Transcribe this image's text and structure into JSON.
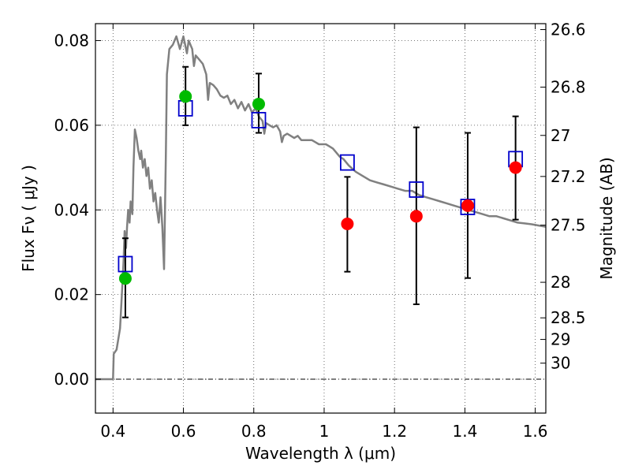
{
  "chart_data": {
    "type": "scatter",
    "xlabel": "Wavelength  λ (μm)",
    "ylabel": "Flux  Fν  ( μJy )",
    "y2label": "Magnitude (AB)",
    "xlim": [
      0.35,
      1.63
    ],
    "ylim": [
      -0.008,
      0.084
    ],
    "grid": true,
    "x_ticks": [
      0.4,
      0.6,
      0.8,
      1.0,
      1.2,
      1.4,
      1.6
    ],
    "x_tick_labels": [
      "0.4",
      "0.6",
      "0.8",
      "1",
      "1.2",
      "1.4",
      "1.6"
    ],
    "y_ticks": [
      0.0,
      0.02,
      0.04,
      0.06,
      0.08
    ],
    "y_tick_labels": [
      "0.00",
      "0.02",
      "0.04",
      "0.06",
      "0.08"
    ],
    "y2_ticks": [
      {
        "flux": 0.0826,
        "label": "26.6"
      },
      {
        "flux": 0.069,
        "label": "26.8"
      },
      {
        "flux": 0.0576,
        "label": "27"
      },
      {
        "flux": 0.0479,
        "label": "27.2"
      },
      {
        "flux": 0.0364,
        "label": "27.5"
      },
      {
        "flux": 0.0229,
        "label": "28"
      },
      {
        "flux": 0.0145,
        "label": "28.5"
      },
      {
        "flux": 0.0094,
        "label": "29"
      },
      {
        "flux": 0.0038,
        "label": "30"
      }
    ],
    "colors": {
      "model": "#808080",
      "detection": "#00bb00",
      "upper": "#ff0000",
      "box": "#0000cc",
      "errorbar": "#000000"
    },
    "model_spectrum": [
      [
        0.35,
        0.0
      ],
      [
        0.4,
        0.0
      ],
      [
        0.402,
        0.006
      ],
      [
        0.41,
        0.007
      ],
      [
        0.42,
        0.012
      ],
      [
        0.425,
        0.02
      ],
      [
        0.43,
        0.028
      ],
      [
        0.433,
        0.035
      ],
      [
        0.437,
        0.031
      ],
      [
        0.44,
        0.036
      ],
      [
        0.443,
        0.04
      ],
      [
        0.447,
        0.037
      ],
      [
        0.45,
        0.042
      ],
      [
        0.455,
        0.039
      ],
      [
        0.458,
        0.05
      ],
      [
        0.462,
        0.059
      ],
      [
        0.467,
        0.057
      ],
      [
        0.472,
        0.054
      ],
      [
        0.477,
        0.052
      ],
      [
        0.48,
        0.054
      ],
      [
        0.485,
        0.05
      ],
      [
        0.49,
        0.052
      ],
      [
        0.495,
        0.048
      ],
      [
        0.5,
        0.05
      ],
      [
        0.505,
        0.045
      ],
      [
        0.51,
        0.047
      ],
      [
        0.515,
        0.042
      ],
      [
        0.52,
        0.044
      ],
      [
        0.525,
        0.04
      ],
      [
        0.53,
        0.037
      ],
      [
        0.535,
        0.043
      ],
      [
        0.54,
        0.036
      ],
      [
        0.545,
        0.026
      ],
      [
        0.55,
        0.052
      ],
      [
        0.553,
        0.072
      ],
      [
        0.56,
        0.078
      ],
      [
        0.57,
        0.079
      ],
      [
        0.58,
        0.081
      ],
      [
        0.59,
        0.078
      ],
      [
        0.6,
        0.081
      ],
      [
        0.61,
        0.077
      ],
      [
        0.615,
        0.08
      ],
      [
        0.625,
        0.078
      ],
      [
        0.63,
        0.074
      ],
      [
        0.635,
        0.0765
      ],
      [
        0.645,
        0.0755
      ],
      [
        0.655,
        0.0745
      ],
      [
        0.665,
        0.072
      ],
      [
        0.67,
        0.066
      ],
      [
        0.675,
        0.07
      ],
      [
        0.685,
        0.0695
      ],
      [
        0.695,
        0.0685
      ],
      [
        0.705,
        0.067
      ],
      [
        0.715,
        0.0665
      ],
      [
        0.725,
        0.067
      ],
      [
        0.735,
        0.065
      ],
      [
        0.745,
        0.066
      ],
      [
        0.755,
        0.064
      ],
      [
        0.765,
        0.0655
      ],
      [
        0.775,
        0.0635
      ],
      [
        0.785,
        0.065
      ],
      [
        0.795,
        0.063
      ],
      [
        0.805,
        0.064
      ],
      [
        0.815,
        0.062
      ],
      [
        0.825,
        0.061
      ],
      [
        0.83,
        0.058
      ],
      [
        0.835,
        0.0605
      ],
      [
        0.845,
        0.06
      ],
      [
        0.855,
        0.0595
      ],
      [
        0.865,
        0.06
      ],
      [
        0.875,
        0.0585
      ],
      [
        0.88,
        0.056
      ],
      [
        0.885,
        0.0575
      ],
      [
        0.895,
        0.058
      ],
      [
        0.905,
        0.0575
      ],
      [
        0.915,
        0.057
      ],
      [
        0.925,
        0.0575
      ],
      [
        0.935,
        0.0565
      ],
      [
        0.945,
        0.0565
      ],
      [
        0.955,
        0.0565
      ],
      [
        0.965,
        0.0565
      ],
      [
        0.975,
        0.056
      ],
      [
        0.985,
        0.0555
      ],
      [
        0.995,
        0.0555
      ],
      [
        1.005,
        0.0555
      ],
      [
        1.015,
        0.055
      ],
      [
        1.025,
        0.0545
      ],
      [
        1.035,
        0.0535
      ],
      [
        1.045,
        0.0525
      ],
      [
        1.055,
        0.052
      ],
      [
        1.07,
        0.0505
      ],
      [
        1.09,
        0.049
      ],
      [
        1.11,
        0.048
      ],
      [
        1.13,
        0.047
      ],
      [
        1.15,
        0.0465
      ],
      [
        1.17,
        0.046
      ],
      [
        1.19,
        0.0455
      ],
      [
        1.21,
        0.045
      ],
      [
        1.23,
        0.0445
      ],
      [
        1.25,
        0.0445
      ],
      [
        1.27,
        0.0435
      ],
      [
        1.29,
        0.043
      ],
      [
        1.31,
        0.0425
      ],
      [
        1.33,
        0.042
      ],
      [
        1.35,
        0.0415
      ],
      [
        1.37,
        0.041
      ],
      [
        1.39,
        0.0405
      ],
      [
        1.41,
        0.04
      ],
      [
        1.43,
        0.0395
      ],
      [
        1.45,
        0.039
      ],
      [
        1.47,
        0.0385
      ],
      [
        1.49,
        0.0385
      ],
      [
        1.51,
        0.038
      ],
      [
        1.53,
        0.0375
      ],
      [
        1.55,
        0.037
      ],
      [
        1.57,
        0.0368
      ],
      [
        1.59,
        0.0366
      ],
      [
        1.61,
        0.0363
      ],
      [
        1.63,
        0.036
      ]
    ],
    "photometry": [
      {
        "x": 0.435,
        "y": 0.0238,
        "err_low": 0.0146,
        "err_high": 0.0333,
        "model": 0.0272,
        "kind": "detection"
      },
      {
        "x": 0.606,
        "y": 0.0668,
        "err_low": 0.06,
        "err_high": 0.0738,
        "model": 0.064,
        "kind": "detection"
      },
      {
        "x": 0.814,
        "y": 0.065,
        "err_low": 0.0582,
        "err_high": 0.0722,
        "model": 0.0612,
        "kind": "detection"
      },
      {
        "x": 1.066,
        "y": 0.0367,
        "err_low": 0.0254,
        "err_high": 0.0478,
        "model": 0.0512,
        "kind": "upper"
      },
      {
        "x": 1.262,
        "y": 0.0385,
        "err_low": 0.0177,
        "err_high": 0.0595,
        "model": 0.0448,
        "kind": "upper"
      },
      {
        "x": 1.408,
        "y": 0.041,
        "err_low": 0.0239,
        "err_high": 0.0582,
        "model": 0.0407,
        "kind": "upper"
      },
      {
        "x": 1.544,
        "y": 0.05,
        "err_low": 0.0377,
        "err_high": 0.0621,
        "model": 0.052,
        "kind": "upper"
      }
    ]
  }
}
